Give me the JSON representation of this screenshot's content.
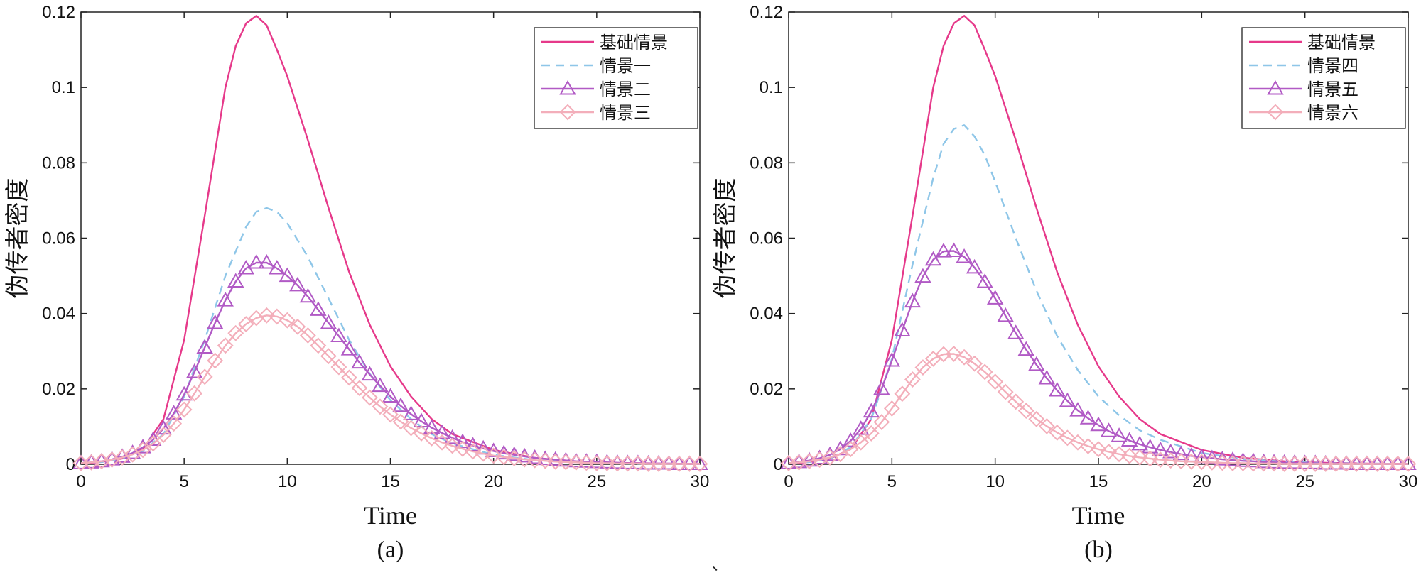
{
  "separator_mark": "、",
  "colors": {
    "base": "#e6398a",
    "s1": "#8ec6e8",
    "s2": "#b15ac5",
    "s3": "#f3aeba"
  },
  "chart_data": [
    {
      "type": "line",
      "panel_label": "(a)",
      "xlabel": "Time",
      "ylabel": "伪传者密度",
      "xlim": [
        0,
        30
      ],
      "ylim": [
        0,
        0.12
      ],
      "xticks": [
        "0",
        "5",
        "10",
        "15",
        "20",
        "25",
        "30"
      ],
      "yticks": [
        "0",
        "0.02",
        "0.04",
        "0.06",
        "0.08",
        "0.1",
        "0.12"
      ],
      "legend_position": "top-right",
      "series": [
        {
          "name": "基础情景",
          "style": "solid",
          "marker": "none",
          "x": [
            0,
            1,
            2,
            3,
            4,
            5,
            6,
            7,
            7.5,
            8,
            8.5,
            9,
            9.5,
            10,
            11,
            12,
            13,
            14,
            15,
            16,
            17,
            18,
            20,
            22,
            24,
            26,
            28,
            30
          ],
          "y": [
            0.0002,
            0.0006,
            0.0015,
            0.004,
            0.012,
            0.033,
            0.066,
            0.1,
            0.111,
            0.117,
            0.119,
            0.1165,
            0.11,
            0.103,
            0.086,
            0.068,
            0.051,
            0.037,
            0.026,
            0.018,
            0.012,
            0.008,
            0.0038,
            0.0017,
            0.0008,
            0.0004,
            0.0002,
            0.0001
          ]
        },
        {
          "name": "情景一",
          "style": "dashed",
          "marker": "none",
          "x": [
            0,
            1,
            2,
            3,
            4,
            5,
            6,
            7,
            8,
            8.5,
            9,
            9.5,
            10,
            11,
            12,
            13,
            14,
            15,
            16,
            17,
            18,
            20,
            22,
            24,
            26,
            28,
            30
          ],
          "y": [
            0.0002,
            0.0006,
            0.0015,
            0.0035,
            0.008,
            0.018,
            0.033,
            0.05,
            0.063,
            0.067,
            0.068,
            0.067,
            0.064,
            0.055,
            0.044,
            0.033,
            0.024,
            0.017,
            0.012,
            0.008,
            0.0055,
            0.0025,
            0.0011,
            0.0005,
            0.0002,
            0.0001,
            5e-05
          ]
        },
        {
          "name": "情景二",
          "style": "solid",
          "marker": "triangle",
          "x": [
            0,
            0.5,
            1,
            1.5,
            2,
            2.5,
            3,
            3.5,
            4,
            4.5,
            5,
            5.5,
            6,
            6.5,
            7,
            7.5,
            8,
            8.5,
            9,
            9.5,
            10,
            10.5,
            11,
            11.5,
            12,
            12.5,
            13,
            13.5,
            14,
            14.5,
            15,
            15.5,
            16,
            16.5,
            17,
            17.5,
            18,
            18.5,
            19,
            19.5,
            20,
            20.5,
            21,
            21.5,
            22,
            22.5,
            23,
            23.5,
            24,
            24.5,
            25,
            25.5,
            26,
            26.5,
            27,
            27.5,
            28,
            28.5,
            29,
            29.5,
            30
          ],
          "y": [
            0.0003,
            0.0005,
            0.0008,
            0.0013,
            0.002,
            0.003,
            0.0045,
            0.0065,
            0.0095,
            0.0135,
            0.0185,
            0.0245,
            0.031,
            0.0375,
            0.0435,
            0.0485,
            0.052,
            0.0535,
            0.0535,
            0.052,
            0.05,
            0.0475,
            0.0445,
            0.041,
            0.0375,
            0.034,
            0.0305,
            0.027,
            0.0238,
            0.0208,
            0.018,
            0.0155,
            0.0133,
            0.0114,
            0.0097,
            0.0083,
            0.007,
            0.0059,
            0.005,
            0.0042,
            0.0035,
            0.0029,
            0.0025,
            0.0021,
            0.0017,
            0.0014,
            0.0012,
            0.001,
            0.0008,
            0.0007,
            0.0006,
            0.0005,
            0.0004,
            0.0003,
            0.0003,
            0.0002,
            0.0002,
            0.0002,
            0.0001,
            0.0001,
            0.0001
          ]
        },
        {
          "name": "情景三",
          "style": "solid",
          "marker": "diamond",
          "x": [
            0,
            0.5,
            1,
            1.5,
            2,
            2.5,
            3,
            3.5,
            4,
            4.5,
            5,
            5.5,
            6,
            6.5,
            7,
            7.5,
            8,
            8.5,
            9,
            9.5,
            10,
            10.5,
            11,
            11.5,
            12,
            12.5,
            13,
            13.5,
            14,
            14.5,
            15,
            15.5,
            16,
            16.5,
            17,
            17.5,
            18,
            18.5,
            19,
            19.5,
            20,
            20.5,
            21,
            21.5,
            22,
            22.5,
            23,
            23.5,
            24,
            24.5,
            25,
            25.5,
            26,
            26.5,
            27,
            27.5,
            28,
            28.5,
            29,
            29.5,
            30
          ],
          "y": [
            0.0003,
            0.0005,
            0.0008,
            0.0012,
            0.0018,
            0.0026,
            0.0038,
            0.0055,
            0.0078,
            0.0108,
            0.0145,
            0.0188,
            0.0232,
            0.0275,
            0.0315,
            0.0348,
            0.0372,
            0.0388,
            0.0395,
            0.0392,
            0.0382,
            0.0365,
            0.0342,
            0.0315,
            0.0287,
            0.0258,
            0.023,
            0.0202,
            0.0177,
            0.0153,
            0.0132,
            0.0113,
            0.0096,
            0.0082,
            0.0069,
            0.0058,
            0.0049,
            0.0041,
            0.0034,
            0.0028,
            0.0023,
            0.0019,
            0.0016,
            0.0013,
            0.0011,
            0.0009,
            0.0007,
            0.0006,
            0.0005,
            0.0004,
            0.0003,
            0.0003,
            0.0002,
            0.0002,
            0.0002,
            0.0001,
            0.0001,
            0.0001,
            0.0001,
            0.0001,
            0.0001
          ]
        }
      ]
    },
    {
      "type": "line",
      "panel_label": "(b)",
      "xlabel": "Time",
      "ylabel": "伪传者密度",
      "xlim": [
        0,
        30
      ],
      "ylim": [
        0,
        0.12
      ],
      "xticks": [
        "0",
        "5",
        "10",
        "15",
        "20",
        "25",
        "30"
      ],
      "yticks": [
        "0",
        "0.02",
        "0.04",
        "0.06",
        "0.08",
        "0.1",
        "0.12"
      ],
      "legend_position": "top-right",
      "series": [
        {
          "name": "基础情景",
          "style": "solid",
          "marker": "none",
          "x": [
            0,
            1,
            2,
            3,
            4,
            5,
            6,
            7,
            7.5,
            8,
            8.5,
            9,
            9.5,
            10,
            11,
            12,
            13,
            14,
            15,
            16,
            17,
            18,
            20,
            22,
            24,
            26,
            28,
            30
          ],
          "y": [
            0.0002,
            0.0006,
            0.0015,
            0.004,
            0.012,
            0.033,
            0.066,
            0.1,
            0.111,
            0.117,
            0.119,
            0.1165,
            0.11,
            0.103,
            0.086,
            0.068,
            0.051,
            0.037,
            0.026,
            0.018,
            0.012,
            0.008,
            0.0038,
            0.0017,
            0.0008,
            0.0004,
            0.0002,
            0.0001
          ]
        },
        {
          "name": "情景四",
          "style": "dashed",
          "marker": "none",
          "x": [
            0,
            1,
            2,
            3,
            4,
            5,
            6,
            7,
            7.5,
            8,
            8.5,
            9,
            9.5,
            10,
            11,
            12,
            13,
            14,
            15,
            16,
            17,
            18,
            20,
            22,
            24,
            26,
            28,
            30
          ],
          "y": [
            0.0002,
            0.0006,
            0.0015,
            0.0045,
            0.012,
            0.028,
            0.053,
            0.076,
            0.085,
            0.089,
            0.09,
            0.087,
            0.082,
            0.075,
            0.06,
            0.046,
            0.034,
            0.025,
            0.018,
            0.013,
            0.009,
            0.0065,
            0.003,
            0.0014,
            0.0007,
            0.0003,
            0.0002,
            0.0001
          ]
        },
        {
          "name": "情景五",
          "style": "solid",
          "marker": "triangle",
          "x": [
            0,
            0.5,
            1,
            1.5,
            2,
            2.5,
            3,
            3.5,
            4,
            4.5,
            5,
            5.5,
            6,
            6.5,
            7,
            7.5,
            8,
            8.5,
            9,
            9.5,
            10,
            10.5,
            11,
            11.5,
            12,
            12.5,
            13,
            13.5,
            14,
            14.5,
            15,
            15.5,
            16,
            16.5,
            17,
            17.5,
            18,
            18.5,
            19,
            19.5,
            20,
            20.5,
            21,
            21.5,
            22,
            22.5,
            23,
            23.5,
            24,
            24.5,
            25,
            25.5,
            26,
            26.5,
            27,
            27.5,
            28,
            28.5,
            29,
            29.5,
            30
          ],
          "y": [
            0.0003,
            0.0006,
            0.001,
            0.0016,
            0.0025,
            0.004,
            0.0062,
            0.0094,
            0.014,
            0.02,
            0.0275,
            0.0355,
            0.0432,
            0.0498,
            0.0543,
            0.0565,
            0.0566,
            0.055,
            0.0522,
            0.0484,
            0.044,
            0.0394,
            0.0348,
            0.0304,
            0.0264,
            0.0228,
            0.0196,
            0.0168,
            0.0143,
            0.0122,
            0.0104,
            0.0088,
            0.0075,
            0.0063,
            0.0053,
            0.0045,
            0.0038,
            0.0032,
            0.0027,
            0.0022,
            0.0019,
            0.0016,
            0.0013,
            0.0011,
            0.0009,
            0.0008,
            0.0006,
            0.0005,
            0.0004,
            0.0004,
            0.0003,
            0.0003,
            0.0002,
            0.0002,
            0.0002,
            0.0001,
            0.0001,
            0.0001,
            0.0001,
            0.0001,
            0.0001
          ]
        },
        {
          "name": "情景六",
          "style": "solid",
          "marker": "diamond",
          "x": [
            0,
            0.5,
            1,
            1.5,
            2,
            2.5,
            3,
            3.5,
            4,
            4.5,
            5,
            5.5,
            6,
            6.5,
            7,
            7.5,
            8,
            8.5,
            9,
            9.5,
            10,
            10.5,
            11,
            11.5,
            12,
            12.5,
            13,
            13.5,
            14,
            14.5,
            15,
            15.5,
            16,
            16.5,
            17,
            17.5,
            18,
            18.5,
            19,
            19.5,
            20,
            20.5,
            21,
            21.5,
            22,
            22.5,
            23,
            23.5,
            24,
            24.5,
            25,
            25.5,
            26,
            26.5,
            27,
            27.5,
            28,
            28.5,
            29,
            29.5,
            30
          ],
          "y": [
            0.0003,
            0.0005,
            0.0008,
            0.0012,
            0.0018,
            0.0027,
            0.004,
            0.0058,
            0.0082,
            0.0112,
            0.0148,
            0.0187,
            0.0225,
            0.0257,
            0.028,
            0.0292,
            0.0293,
            0.0284,
            0.0267,
            0.0245,
            0.0219,
            0.0192,
            0.0166,
            0.0142,
            0.012,
            0.0101,
            0.0084,
            0.007,
            0.0058,
            0.0048,
            0.004,
            0.0033,
            0.0027,
            0.0022,
            0.0018,
            0.0015,
            0.0012,
            0.001,
            0.0008,
            0.0007,
            0.0006,
            0.0005,
            0.0004,
            0.0003,
            0.0003,
            0.0002,
            0.0002,
            0.0002,
            0.0001,
            0.0001,
            0.0001,
            0.0001,
            0.0001,
            0.0001,
            0.0001,
            0.0001,
            0.0001,
            0.0001,
            0.0001,
            0.0001,
            0.0001
          ]
        }
      ]
    }
  ]
}
